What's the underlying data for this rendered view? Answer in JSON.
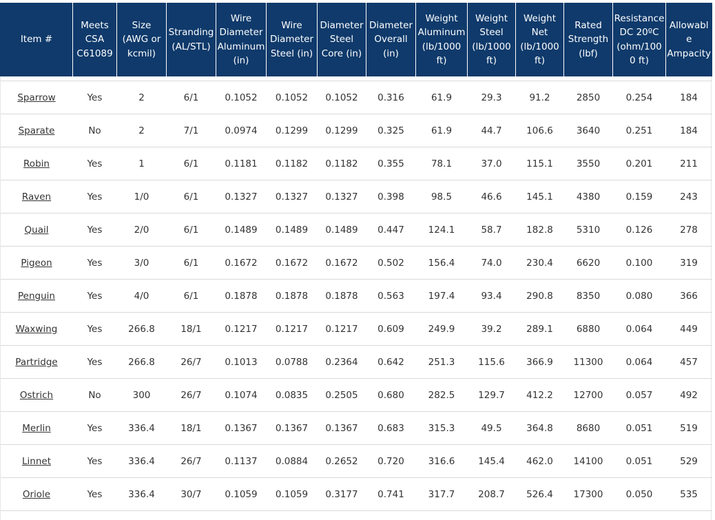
{
  "table": {
    "headers": [
      "Item #",
      "Meets CSA C61089",
      "Size (AWG or kcmil)",
      "Stranding (AL/STL)",
      "Wire Diameter Aluminum (in)",
      "Wire Diameter Steel (in)",
      "Diameter Steel Core (in)",
      "Diameter Overall (in)",
      "Weight Aluminum (lb/1000 ft)",
      "Weight Steel (lb/1000 ft)",
      "Weight Net (lb/1000 ft)",
      "Rated Strength (lbf)",
      "Resistance DC 20ºC (ohm/1000 ft)",
      "Allowable Ampacity"
    ],
    "rows": [
      [
        "Sparrow",
        "Yes",
        "2",
        "6/1",
        "0.1052",
        "0.1052",
        "0.1052",
        "0.316",
        "61.9",
        "29.3",
        "91.2",
        "2850",
        "0.254",
        "184"
      ],
      [
        "Sparate",
        "No",
        "2",
        "7/1",
        "0.0974",
        "0.1299",
        "0.1299",
        "0.325",
        "61.9",
        "44.7",
        "106.6",
        "3640",
        "0.251",
        "184"
      ],
      [
        "Robin",
        "Yes",
        "1",
        "6/1",
        "0.1181",
        "0.1182",
        "0.1182",
        "0.355",
        "78.1",
        "37.0",
        "115.1",
        "3550",
        "0.201",
        "211"
      ],
      [
        "Raven",
        "Yes",
        "1/0",
        "6/1",
        "0.1327",
        "0.1327",
        "0.1327",
        "0.398",
        "98.5",
        "46.6",
        "145.1",
        "4380",
        "0.159",
        "243"
      ],
      [
        "Quail",
        "Yes",
        "2/0",
        "6/1",
        "0.1489",
        "0.1489",
        "0.1489",
        "0.447",
        "124.1",
        "58.7",
        "182.8",
        "5310",
        "0.126",
        "278"
      ],
      [
        "Pigeon",
        "Yes",
        "3/0",
        "6/1",
        "0.1672",
        "0.1672",
        "0.1672",
        "0.502",
        "156.4",
        "74.0",
        "230.4",
        "6620",
        "0.100",
        "319"
      ],
      [
        "Penguin",
        "Yes",
        "4/0",
        "6/1",
        "0.1878",
        "0.1878",
        "0.1878",
        "0.563",
        "197.4",
        "93.4",
        "290.8",
        "8350",
        "0.080",
        "366"
      ],
      [
        "Waxwing",
        "Yes",
        "266.8",
        "18/1",
        "0.1217",
        "0.1217",
        "0.1217",
        "0.609",
        "249.9",
        "39.2",
        "289.1",
        "6880",
        "0.064",
        "449"
      ],
      [
        "Partridge",
        "Yes",
        "266.8",
        "26/7",
        "0.1013",
        "0.0788",
        "0.2364",
        "0.642",
        "251.3",
        "115.6",
        "366.9",
        "11300",
        "0.064",
        "457"
      ],
      [
        "Ostrich",
        "No",
        "300",
        "26/7",
        "0.1074",
        "0.0835",
        "0.2505",
        "0.680",
        "282.5",
        "129.7",
        "412.2",
        "12700",
        "0.057",
        "492"
      ],
      [
        "Merlin",
        "Yes",
        "336.4",
        "18/1",
        "0.1367",
        "0.1367",
        "0.1367",
        "0.683",
        "315.3",
        "49.5",
        "364.8",
        "8680",
        "0.051",
        "519"
      ],
      [
        "Linnet",
        "Yes",
        "336.4",
        "26/7",
        "0.1137",
        "0.0884",
        "0.2652",
        "0.720",
        "316.6",
        "145.4",
        "462.0",
        "14100",
        "0.051",
        "529"
      ],
      [
        "Oriole",
        "Yes",
        "336.4",
        "30/7",
        "0.1059",
        "0.1059",
        "0.3177",
        "0.741",
        "317.7",
        "208.7",
        "526.4",
        "17300",
        "0.050",
        "535"
      ]
    ]
  },
  "colors": {
    "header_bg": "#0f3a6b",
    "header_text": "#ffffff",
    "cell_text": "#333333",
    "row_border": "#d9d9d9"
  }
}
